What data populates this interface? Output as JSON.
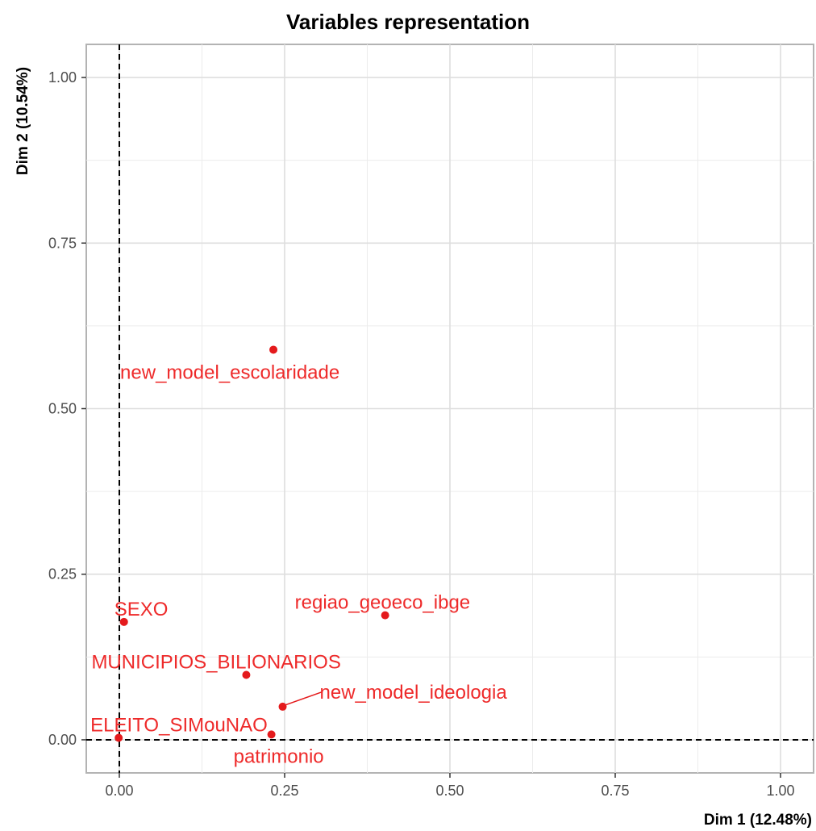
{
  "chart_data": {
    "type": "scatter",
    "title": "Variables representation",
    "xlabel": "Dim 1 (12.48%)",
    "ylabel": "Dim 2 (10.54%)",
    "xlim": [
      -0.05,
      1.05
    ],
    "ylim": [
      -0.05,
      1.05
    ],
    "xticks": [
      "0.00",
      "0.25",
      "0.50",
      "0.75",
      "1.00"
    ],
    "yticks": [
      "0.00",
      "0.25",
      "0.50",
      "0.75",
      "1.00"
    ],
    "grid": true,
    "reference_lines": {
      "x": 0,
      "y": 0,
      "style": "dashed"
    },
    "point_color": "#e41a1c",
    "points": [
      {
        "label": "new_model_escolaridade",
        "x": 0.233,
        "y": 0.589
      },
      {
        "label": "SEXO",
        "x": 0.007,
        "y": 0.178
      },
      {
        "label": "regiao_geoeco_ibge",
        "x": 0.402,
        "y": 0.188
      },
      {
        "label": "MUNICIPIOS_BILIONARIOS",
        "x": 0.192,
        "y": 0.098
      },
      {
        "label": "new_model_ideologia",
        "x": 0.247,
        "y": 0.05
      },
      {
        "label": "ELEITO_SIMouNAO",
        "x": -0.001,
        "y": 0.003
      },
      {
        "label": "patrimonio",
        "x": 0.23,
        "y": 0.008
      }
    ]
  }
}
